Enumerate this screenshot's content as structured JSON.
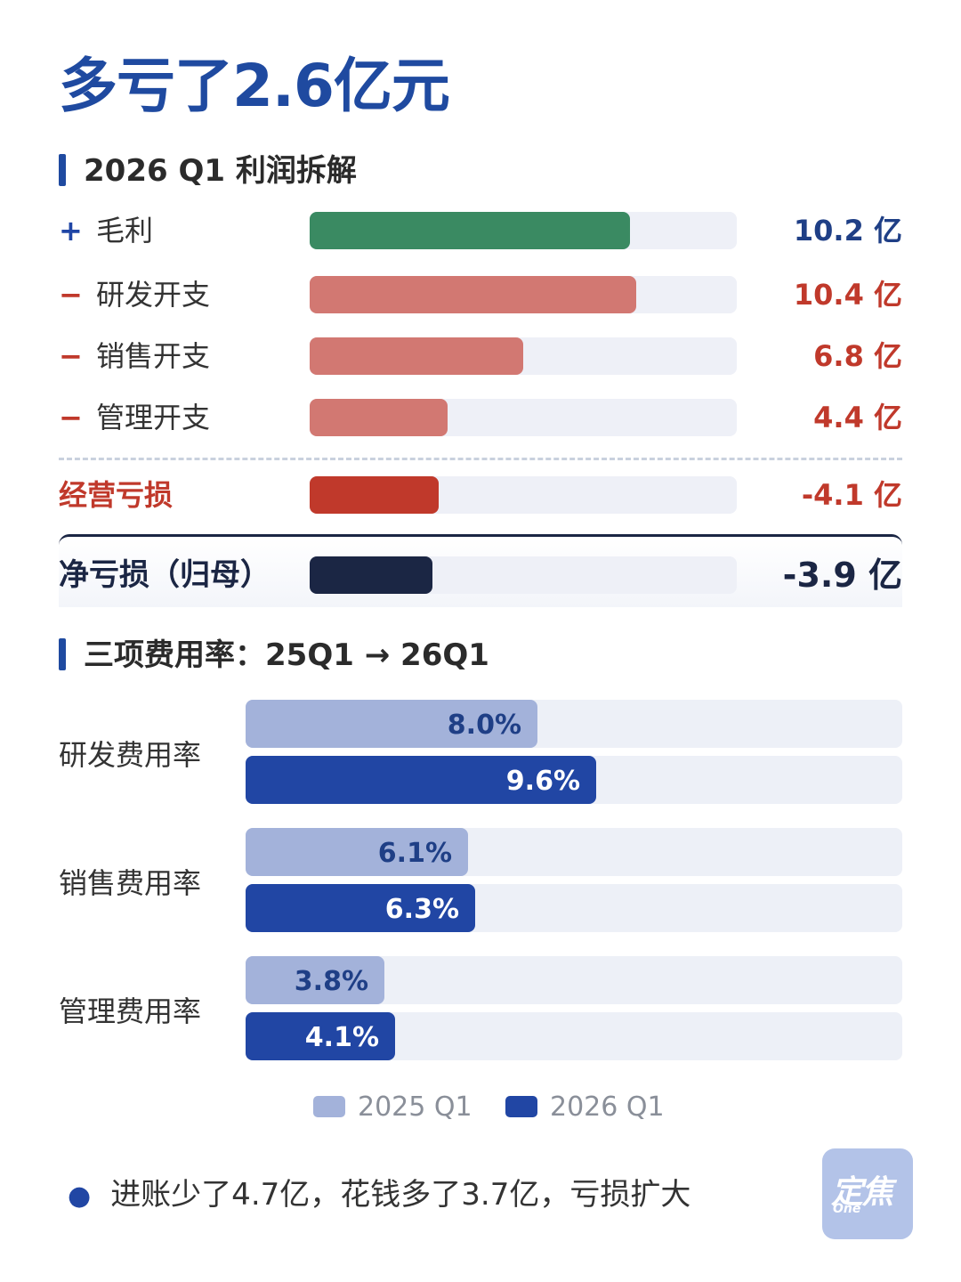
{
  "title": "多亏了2.6亿元",
  "section1_title": "2026 Q1 利润拆解",
  "section2_title": "三项费用率：25Q1 → 26Q1",
  "profit": {
    "unit": "亿",
    "rows": [
      {
        "sign": "+",
        "label": "毛利",
        "value": 10.2,
        "value_text": "10.2 亿",
        "color": "#3a8a62",
        "value_color": "#1f3f86"
      },
      {
        "sign": "−",
        "label": "研发开支",
        "value": 10.4,
        "value_text": "10.4 亿",
        "color": "#d27872",
        "value_color": "#c0392b"
      },
      {
        "sign": "−",
        "label": "销售开支",
        "value": 6.8,
        "value_text": "6.8 亿",
        "color": "#d27872",
        "value_color": "#c0392b"
      },
      {
        "sign": "−",
        "label": "管理开支",
        "value": 4.4,
        "value_text": "4.4 亿",
        "color": "#d27872",
        "value_color": "#c0392b"
      }
    ],
    "operating_loss": {
      "label": "经营亏损",
      "value": -4.1,
      "value_text": "-4.1 亿",
      "color": "#c0392b",
      "value_color": "#c0392b"
    },
    "net_loss": {
      "label": "净亏损（归母）",
      "value": -3.9,
      "value_text": "-3.9 亿",
      "color": "#1b2644",
      "value_color": "#1b2644"
    },
    "scale_max": 13.6
  },
  "chart_data": {
    "type": "bar",
    "orientation": "horizontal",
    "categories": [
      "研发费用率",
      "销售费用率",
      "管理费用率"
    ],
    "series": [
      {
        "name": "2025 Q1",
        "values": [
          8.0,
          6.1,
          3.8
        ],
        "labels": [
          "8.0%",
          "6.1%",
          "3.8%"
        ],
        "color": "#a3b2da"
      },
      {
        "name": "2026 Q1",
        "values": [
          9.6,
          6.3,
          4.1
        ],
        "labels": [
          "9.6%",
          "6.3%",
          "4.1%"
        ],
        "color": "#2146a4"
      }
    ],
    "xlim": [
      0,
      18
    ],
    "legend": "bottom-center"
  },
  "footnote": "进账少了4.7亿，花钱多了3.7亿，亏损扩大",
  "logo": {
    "main": "定焦",
    "sub": "One"
  },
  "colors": {
    "accent": "#1f4aa0",
    "track": "#eef0f7"
  }
}
